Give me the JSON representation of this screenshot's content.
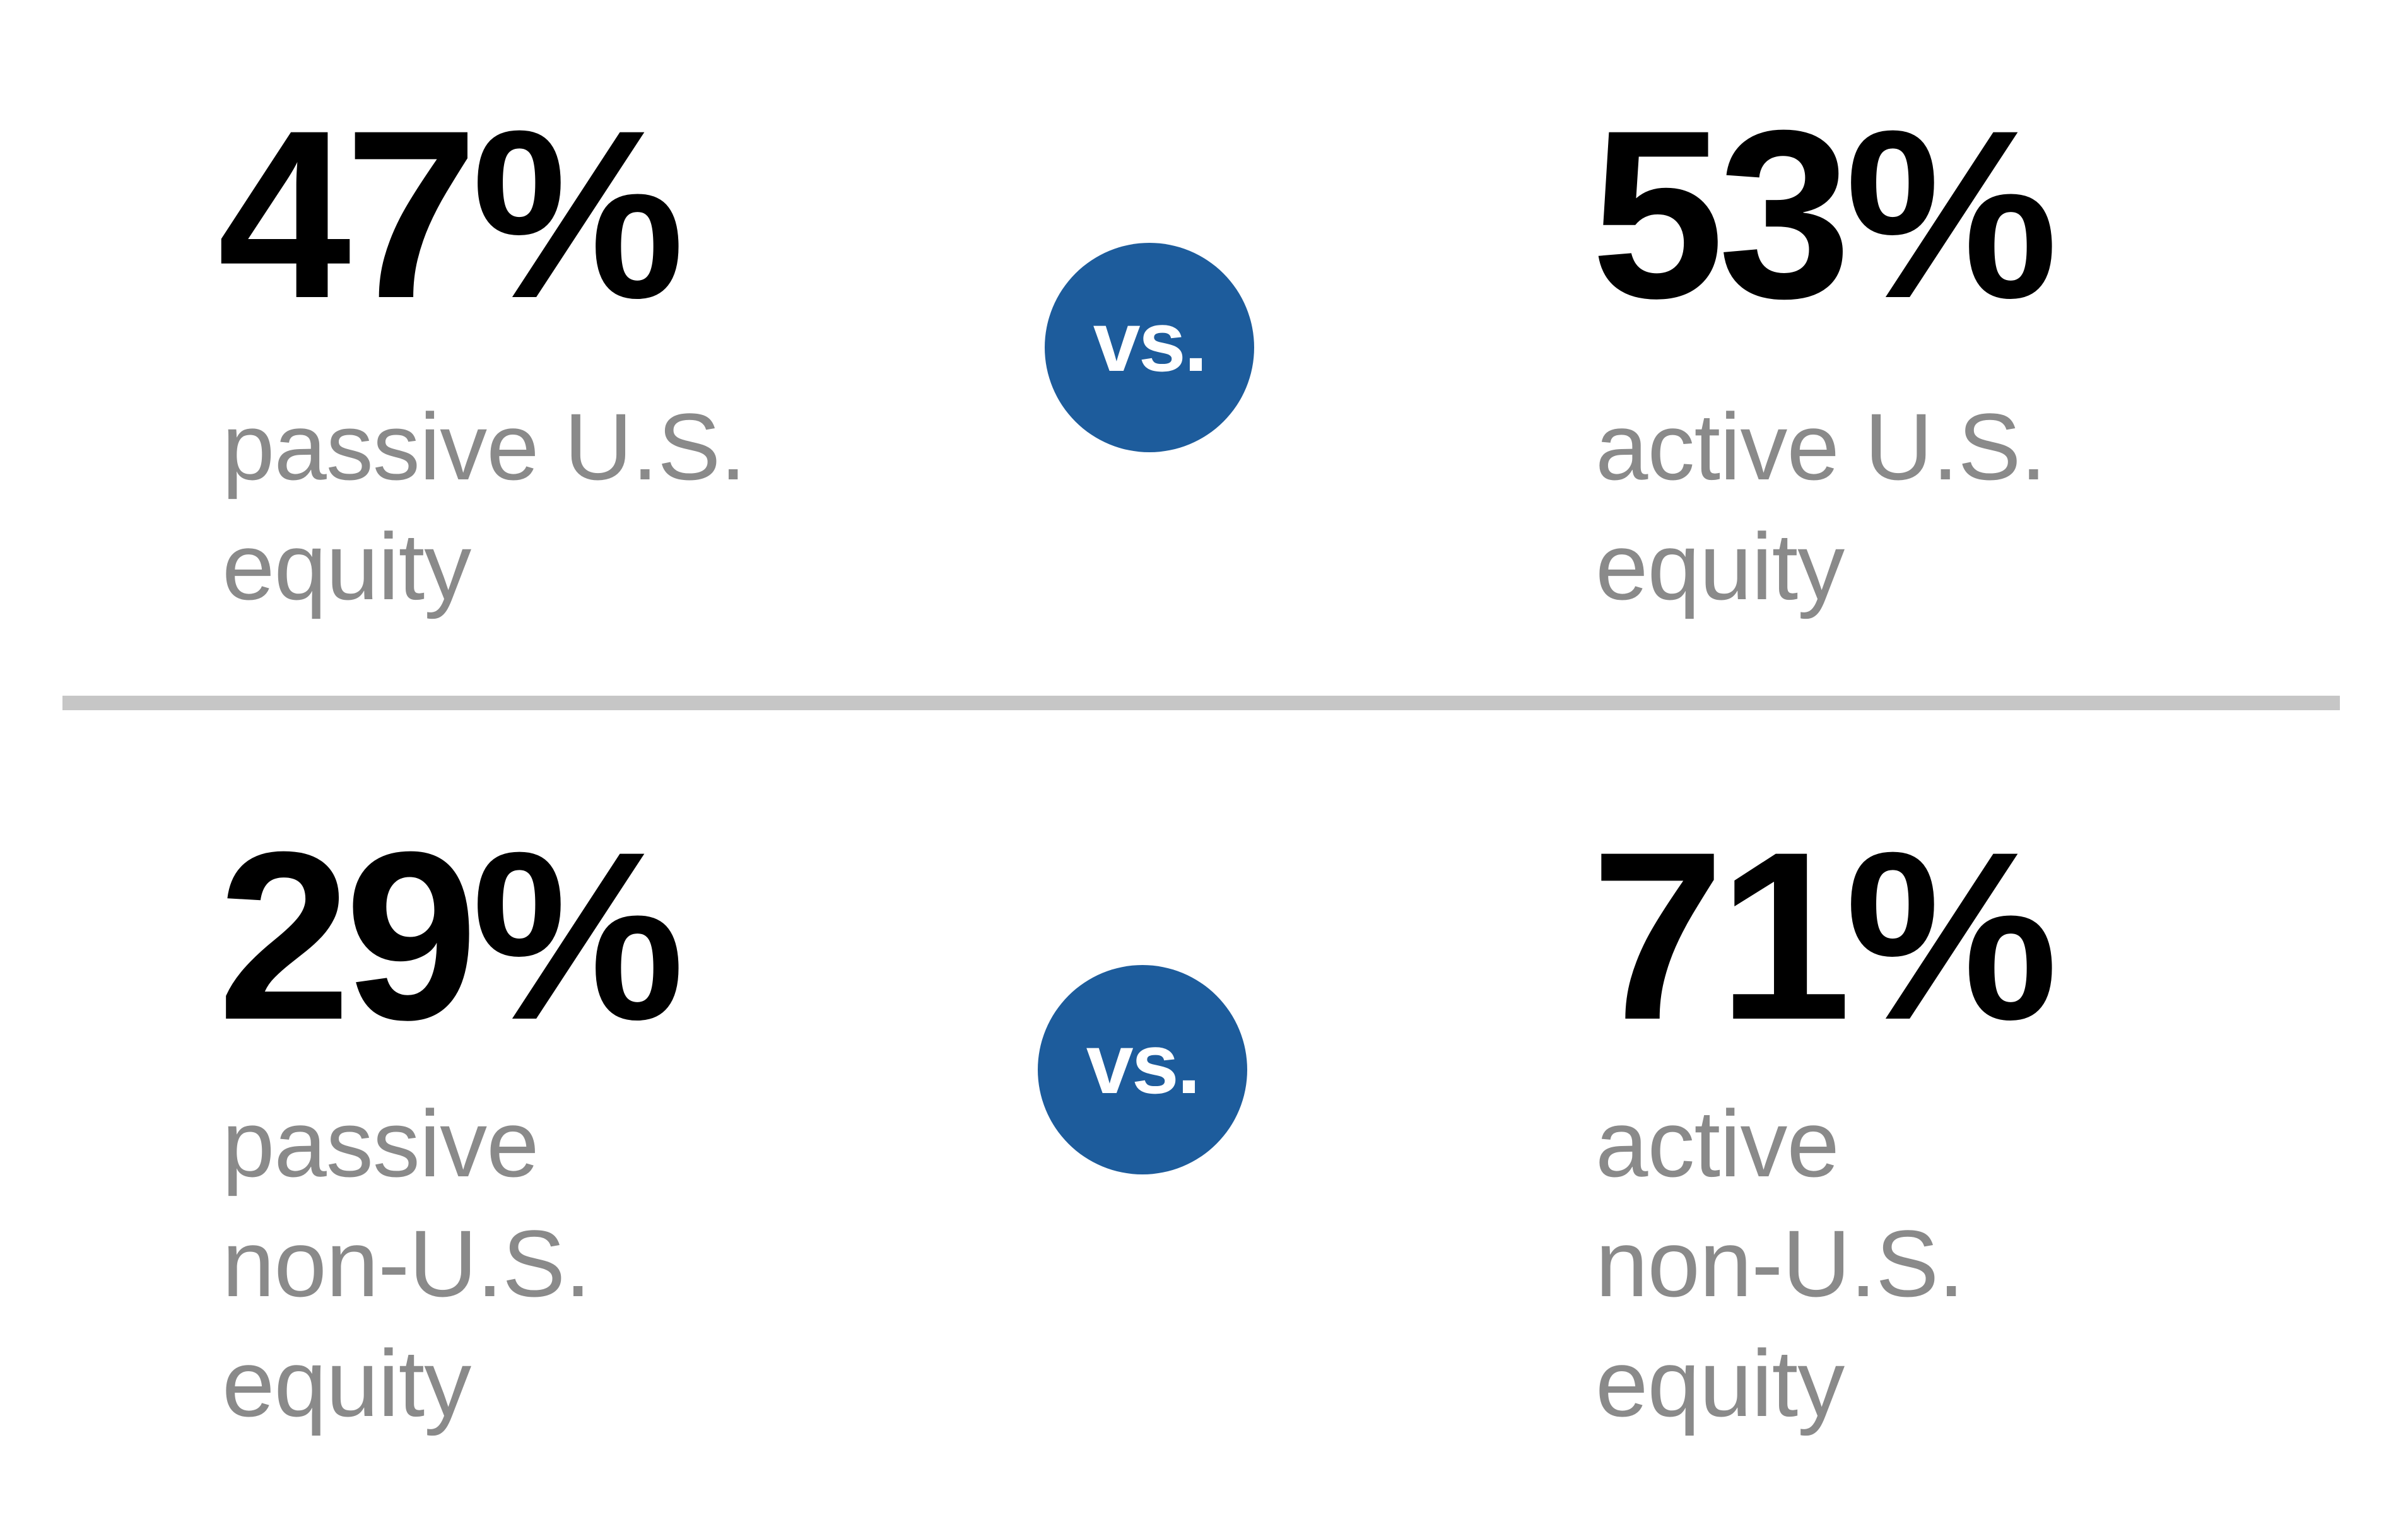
{
  "colors": {
    "background": "#ffffff",
    "accent_blue": "#1d5c9c",
    "value_black": "#000000",
    "label_gray": "#8a8a8a",
    "divider_gray": "#c6c6c6"
  },
  "vs_label": "vs.",
  "rows": [
    {
      "left": {
        "value": "47%",
        "label_lines": [
          "passive U.S.",
          "equity"
        ]
      },
      "right": {
        "value": "53%",
        "label_lines": [
          "active U.S.",
          "equity"
        ]
      }
    },
    {
      "left": {
        "value": "29%",
        "label_lines": [
          "passive",
          "non-U.S.",
          "equity"
        ]
      },
      "right": {
        "value": "71%",
        "label_lines": [
          "active",
          "non-U.S.",
          "equity"
        ]
      }
    }
  ],
  "chart_data": {
    "type": "table",
    "title": "",
    "categories": [
      "U.S. equity",
      "non-U.S. equity"
    ],
    "series": [
      {
        "name": "passive",
        "values": [
          47,
          29
        ]
      },
      {
        "name": "active",
        "values": [
          53,
          71
        ]
      }
    ],
    "units": "%"
  }
}
